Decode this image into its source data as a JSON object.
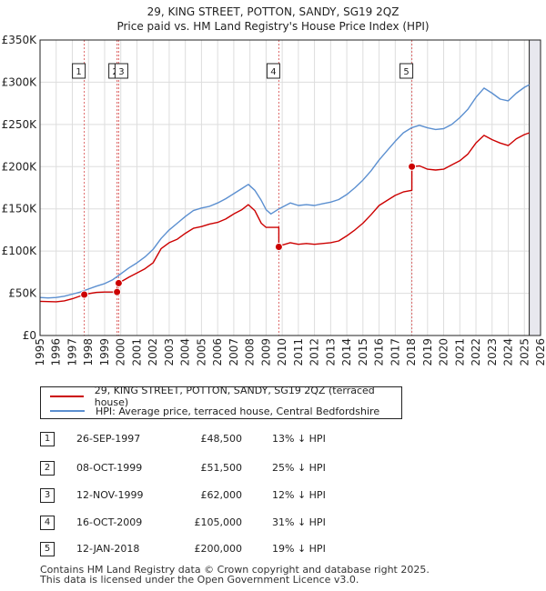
{
  "chart_data": {
    "type": "line",
    "title": "29, KING STREET, POTTON, SANDY, SG19 2QZ",
    "subtitle": "Price paid vs. HM Land Registry's House Price Index (HPI)",
    "xlim": [
      1995,
      2026
    ],
    "ylim": [
      0,
      350000
    ],
    "x_ticks": [
      "1995",
      "1996",
      "1997",
      "1998",
      "1999",
      "2000",
      "2001",
      "2002",
      "2003",
      "2004",
      "2005",
      "2006",
      "2007",
      "2008",
      "2009",
      "2010",
      "2011",
      "2012",
      "2013",
      "2014",
      "2015",
      "2016",
      "2017",
      "2018",
      "2019",
      "2020",
      "2021",
      "2022",
      "2023",
      "2024",
      "2025",
      "2026"
    ],
    "y_ticks": [
      {
        "value": 0,
        "label": "£0"
      },
      {
        "value": 50000,
        "label": "£50K"
      },
      {
        "value": 100000,
        "label": "£100K"
      },
      {
        "value": 150000,
        "label": "£150K"
      },
      {
        "value": 200000,
        "label": "£200K"
      },
      {
        "value": 250000,
        "label": "£250K"
      },
      {
        "value": 300000,
        "label": "£300K"
      },
      {
        "value": 350000,
        "label": "£350K"
      }
    ],
    "series": [
      {
        "name": "29, KING STREET, POTTON, SANDY, SG19 2QZ (terraced house)",
        "color": "#cc0000",
        "points": [
          [
            1995.0,
            40500
          ],
          [
            1996.0,
            40000
          ],
          [
            1996.5,
            41000
          ],
          [
            1997.0,
            43500
          ],
          [
            1997.74,
            48500
          ],
          [
            1998.0,
            49500
          ],
          [
            1998.5,
            51000
          ],
          [
            1999.0,
            51500
          ],
          [
            1999.77,
            51500
          ],
          [
            1999.77,
            62000
          ],
          [
            1999.87,
            62000
          ],
          [
            2000.5,
            69000
          ],
          [
            2001.0,
            74000
          ],
          [
            2001.5,
            79000
          ],
          [
            2002.0,
            86000
          ],
          [
            2002.5,
            103000
          ],
          [
            2003.0,
            110000
          ],
          [
            2003.5,
            114000
          ],
          [
            2004.0,
            121000
          ],
          [
            2004.5,
            127000
          ],
          [
            2005.0,
            129000
          ],
          [
            2005.5,
            132000
          ],
          [
            2006.0,
            134000
          ],
          [
            2006.5,
            138000
          ],
          [
            2007.0,
            144000
          ],
          [
            2007.5,
            149000
          ],
          [
            2007.9,
            155000
          ],
          [
            2008.3,
            148000
          ],
          [
            2008.7,
            133000
          ],
          [
            2009.0,
            128000
          ],
          [
            2009.79,
            128000
          ],
          [
            2009.79,
            105000
          ],
          [
            2010.0,
            107000
          ],
          [
            2010.5,
            110000
          ],
          [
            2011.0,
            108000
          ],
          [
            2011.5,
            109000
          ],
          [
            2012.0,
            108000
          ],
          [
            2012.5,
            109000
          ],
          [
            2013.0,
            110000
          ],
          [
            2013.5,
            112000
          ],
          [
            2014.0,
            118000
          ],
          [
            2014.5,
            125000
          ],
          [
            2015.0,
            133000
          ],
          [
            2015.5,
            143000
          ],
          [
            2016.0,
            154000
          ],
          [
            2016.5,
            160000
          ],
          [
            2017.0,
            166000
          ],
          [
            2017.5,
            170000
          ],
          [
            2018.03,
            172000
          ],
          [
            2018.03,
            200000
          ],
          [
            2018.5,
            201000
          ],
          [
            2019.0,
            197000
          ],
          [
            2019.5,
            196000
          ],
          [
            2020.0,
            197000
          ],
          [
            2020.5,
            202000
          ],
          [
            2021.0,
            207000
          ],
          [
            2021.5,
            215000
          ],
          [
            2022.0,
            228000
          ],
          [
            2022.5,
            237000
          ],
          [
            2023.0,
            232000
          ],
          [
            2023.5,
            228000
          ],
          [
            2024.0,
            225000
          ],
          [
            2024.5,
            233000
          ],
          [
            2025.0,
            238000
          ],
          [
            2025.3,
            240000
          ]
        ]
      },
      {
        "name": "HPI: Average price, terraced house, Central Bedfordshire",
        "color": "#5b8fd0",
        "points": [
          [
            1995.0,
            45000
          ],
          [
            1995.5,
            44500
          ],
          [
            1996.0,
            45000
          ],
          [
            1996.5,
            46500
          ],
          [
            1997.0,
            49000
          ],
          [
            1997.5,
            51500
          ],
          [
            1998.0,
            55000
          ],
          [
            1998.5,
            58500
          ],
          [
            1999.0,
            61500
          ],
          [
            1999.5,
            66000
          ],
          [
            2000.0,
            73000
          ],
          [
            2000.5,
            80000
          ],
          [
            2001.0,
            86000
          ],
          [
            2001.5,
            93000
          ],
          [
            2002.0,
            102000
          ],
          [
            2002.5,
            115000
          ],
          [
            2003.0,
            125000
          ],
          [
            2003.5,
            133000
          ],
          [
            2004.0,
            141000
          ],
          [
            2004.5,
            148000
          ],
          [
            2005.0,
            151000
          ],
          [
            2005.5,
            153000
          ],
          [
            2006.0,
            157000
          ],
          [
            2006.5,
            162000
          ],
          [
            2007.0,
            168000
          ],
          [
            2007.5,
            174000
          ],
          [
            2007.9,
            179000
          ],
          [
            2008.3,
            172000
          ],
          [
            2008.7,
            160000
          ],
          [
            2009.0,
            149000
          ],
          [
            2009.3,
            144000
          ],
          [
            2009.8,
            150000
          ],
          [
            2010.0,
            152000
          ],
          [
            2010.5,
            157000
          ],
          [
            2011.0,
            154000
          ],
          [
            2011.5,
            155000
          ],
          [
            2012.0,
            154000
          ],
          [
            2012.5,
            156000
          ],
          [
            2013.0,
            158000
          ],
          [
            2013.5,
            161000
          ],
          [
            2014.0,
            167000
          ],
          [
            2014.5,
            175000
          ],
          [
            2015.0,
            184000
          ],
          [
            2015.5,
            195000
          ],
          [
            2016.0,
            208000
          ],
          [
            2016.5,
            219000
          ],
          [
            2017.0,
            230000
          ],
          [
            2017.5,
            240000
          ],
          [
            2018.0,
            246000
          ],
          [
            2018.5,
            249000
          ],
          [
            2019.0,
            246000
          ],
          [
            2019.5,
            244000
          ],
          [
            2020.0,
            245000
          ],
          [
            2020.5,
            250000
          ],
          [
            2021.0,
            258000
          ],
          [
            2021.5,
            268000
          ],
          [
            2022.0,
            282000
          ],
          [
            2022.5,
            293000
          ],
          [
            2023.0,
            287000
          ],
          [
            2023.5,
            280000
          ],
          [
            2024.0,
            278000
          ],
          [
            2024.5,
            287000
          ],
          [
            2025.0,
            294000
          ],
          [
            2025.3,
            297000
          ]
        ]
      }
    ],
    "sales": [
      {
        "n": "1",
        "x": 1997.74,
        "price": 48500
      },
      {
        "n": "2",
        "x": 1999.77,
        "price": 51500
      },
      {
        "n": "3",
        "x": 1999.87,
        "price": 62000
      },
      {
        "n": "4",
        "x": 2009.79,
        "price": 105000
      },
      {
        "n": "5",
        "x": 2018.03,
        "price": 200000
      }
    ],
    "label_boxes": [
      {
        "n": "1",
        "x": 1997.74
      },
      {
        "n": "2",
        "x": 1999.77
      },
      {
        "n": "3",
        "x": 1999.87
      },
      {
        "n": "4",
        "x": 2009.79
      },
      {
        "n": "5",
        "x": 2018.03
      }
    ],
    "forecast_start": 2025.3
  },
  "legend": {
    "property_label": "29, KING STREET, POTTON, SANDY, SG19 2QZ (terraced house)",
    "hpi_label": "HPI: Average price, terraced house, Central Bedfordshire",
    "property_color": "#cc0000",
    "hpi_color": "#5b8fd0"
  },
  "transactions": [
    {
      "n": "1",
      "date": "26-SEP-1997",
      "price": "£48,500",
      "hpi": "13% ↓ HPI"
    },
    {
      "n": "2",
      "date": "08-OCT-1999",
      "price": "£51,500",
      "hpi": "25% ↓ HPI"
    },
    {
      "n": "3",
      "date": "12-NOV-1999",
      "price": "£62,000",
      "hpi": "12% ↓ HPI"
    },
    {
      "n": "4",
      "date": "16-OCT-2009",
      "price": "£105,000",
      "hpi": "31% ↓ HPI"
    },
    {
      "n": "5",
      "date": "12-JAN-2018",
      "price": "£200,000",
      "hpi": "19% ↓ HPI"
    }
  ],
  "footer": {
    "line1": "Contains HM Land Registry data © Crown copyright and database right 2025.",
    "line2": "This data is licensed under the Open Government Licence v3.0."
  }
}
